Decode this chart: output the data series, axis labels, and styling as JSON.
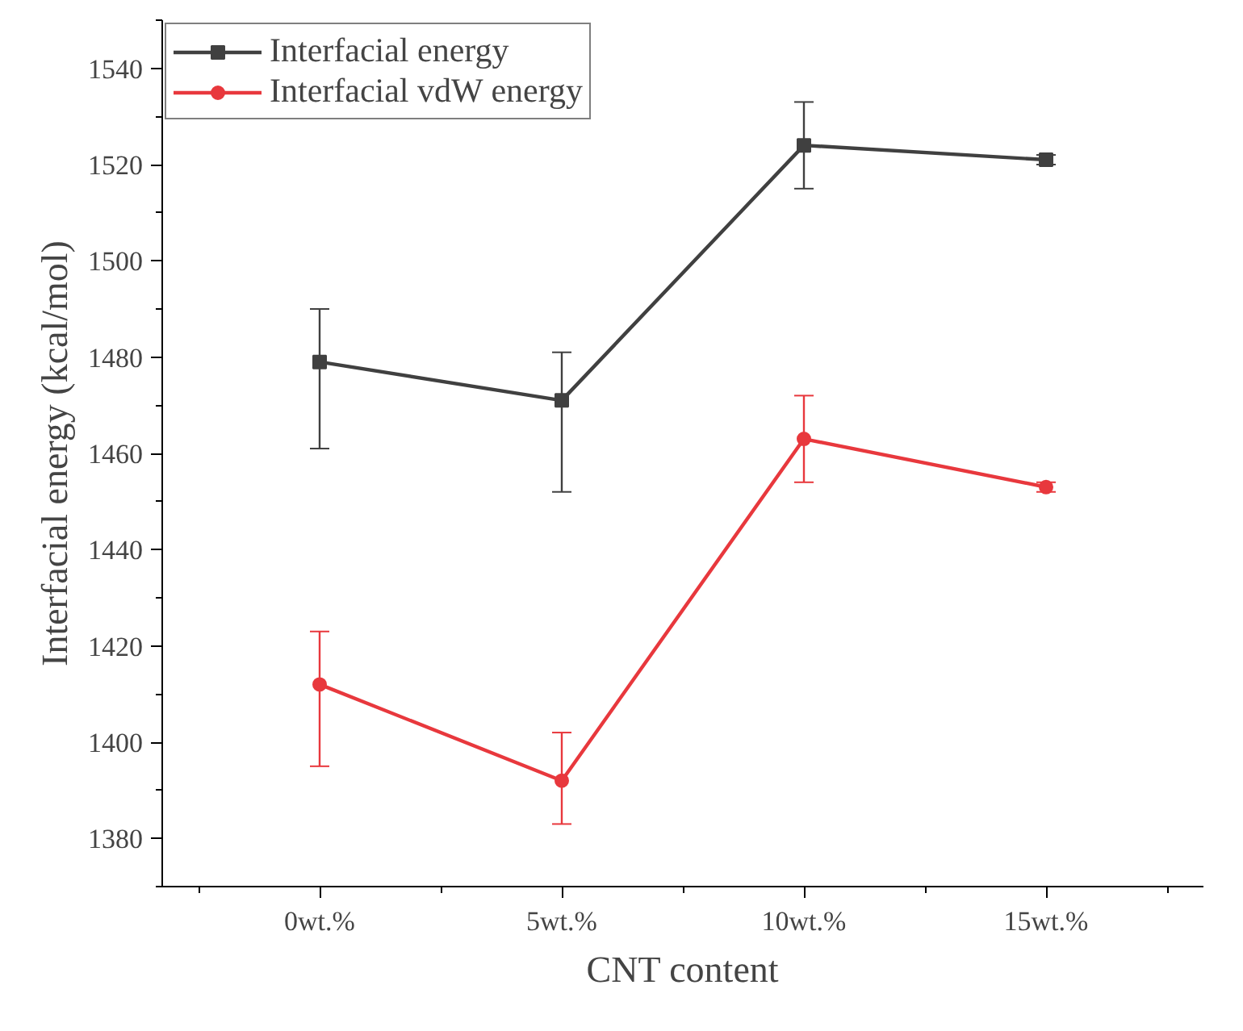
{
  "chart_data": {
    "type": "line",
    "xlabel": "CNT content",
    "ylabel": "Interfacial energy (kcal/mol)",
    "categories": [
      "0wt.%",
      "5wt.%",
      "10wt.%",
      "15wt.%"
    ],
    "series": [
      {
        "name": "Interfacial energy",
        "color": "#404040",
        "marker": "square",
        "values": [
          1479,
          1471,
          1524,
          1521
        ],
        "errors": [
          [
            1461,
            1490
          ],
          [
            1452,
            1481
          ],
          [
            1515,
            1533
          ],
          [
            1520,
            1522
          ]
        ]
      },
      {
        "name": "Interfacial vdW energy",
        "color": "#e8383d",
        "marker": "circle",
        "values": [
          1412,
          1392,
          1463,
          1453
        ],
        "errors": [
          [
            1395,
            1423
          ],
          [
            1383,
            1402
          ],
          [
            1454,
            1472
          ],
          [
            1452,
            1454
          ]
        ]
      }
    ],
    "ylim": [
      1370,
      1550
    ],
    "yticks": [
      1380,
      1400,
      1420,
      1440,
      1460,
      1480,
      1500,
      1520,
      1540
    ],
    "grid": false,
    "legend": "top left",
    "line_style": "solid"
  }
}
